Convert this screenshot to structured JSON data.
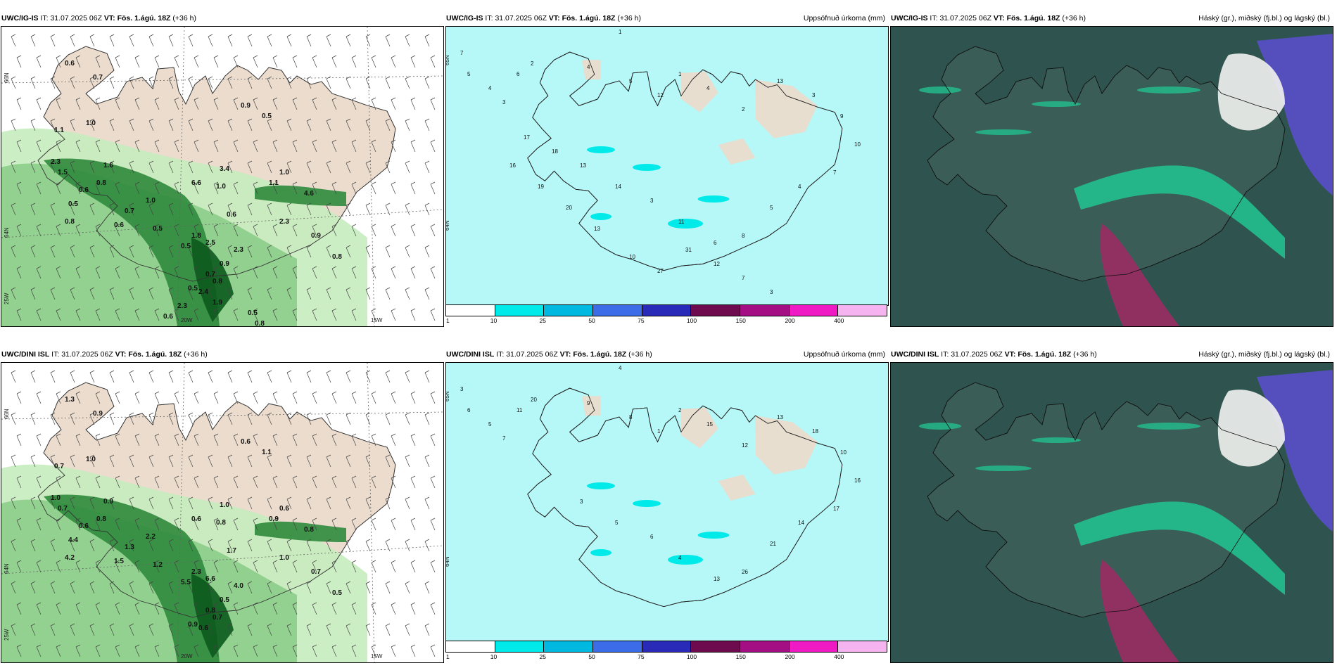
{
  "colors": {
    "land": "#ebdcce",
    "sea_white": "#ffffff",
    "precip_light_green": "#c6ecbe",
    "precip_green": "#8ccd8a",
    "precip_dark_green": "#2f8a3c",
    "precip_darkest_green": "#0c5a1e",
    "cumulative_cyan": "#b6f7f7",
    "cloud_dark": "#2f544f",
    "cloud_teal": "#21c592",
    "cloud_magenta": "#9b2c63",
    "cloud_purple": "#5b4fd0"
  },
  "panels": [
    {
      "model": "UWC/IG-IS",
      "it_label": "IT:",
      "it_value": "31.07.2025 06Z",
      "vt_label": "VT:",
      "vt_value": "Fös. 1.ágú. 18Z",
      "lead": "(+36 h)",
      "right_title": "",
      "kind": "precip_wind",
      "axis_labels": [
        "66N",
        "64N",
        "20W",
        "15W",
        "25W"
      ],
      "value_labels": [
        "0.6",
        "0.7",
        "1.0",
        "0.9",
        "0.5",
        "1.1",
        "2.3",
        "1.6",
        "0.8",
        "0.6",
        "1.5",
        "0.5",
        "1.0",
        "0.8",
        "3.4",
        "1.0",
        "1.1",
        "0.7",
        "0.6",
        "0.9",
        "0.8",
        "2.3",
        "4.6",
        "1.8",
        "0.5",
        "2.5",
        "2.3",
        "0.6",
        "1.0",
        "6.6",
        "0.5",
        "0.9",
        "0.7",
        "0.8",
        "0.5",
        "2.4",
        "1.9",
        "2.3",
        "0.5",
        "0.8",
        "0.6"
      ]
    },
    {
      "model": "UWC/IG-IS",
      "it_label": "IT:",
      "it_value": "31.07.2025 06Z",
      "vt_label": "VT:",
      "vt_value": "Fös. 1.ágú. 18Z",
      "lead": "(+36 h)",
      "right_title": "Uppsöfnuð úrkoma (mm)",
      "kind": "cumulative",
      "axis_labels": [
        "65N",
        "64N"
      ],
      "value_labels": [
        "1",
        "7",
        "5",
        "4",
        "3",
        "6",
        "2",
        "4",
        "5",
        "12",
        "1",
        "4",
        "2",
        "13",
        "3",
        "9",
        "10",
        "7",
        "4",
        "5",
        "8",
        "6",
        "11",
        "3",
        "14",
        "13",
        "18",
        "17",
        "16",
        "19",
        "20",
        "13",
        "10",
        "27",
        "31",
        "12",
        "7",
        "3"
      ],
      "colorbar": {
        "colors": [
          "#ffffff",
          "#00eaea",
          "#00b8e0",
          "#3c6ce8",
          "#2a2ab8",
          "#6e0a4e",
          "#a40f83",
          "#f01ac4",
          "#f5b4f0"
        ],
        "ticks": [
          "1",
          "10",
          "25",
          "50",
          "75",
          "100",
          "150",
          "200",
          "400"
        ]
      }
    },
    {
      "model": "UWC/IG-IS",
      "it_label": "IT:",
      "it_value": "31.07.2025 06Z",
      "vt_label": "VT:",
      "vt_value": "Fös. 1.ágú. 18Z",
      "lead": "(+36 h)",
      "right_title": "Háský (gr.), miðský (fj.bl.) og lágský (bl.)",
      "kind": "cloud",
      "axis_labels": [],
      "value_labels": []
    },
    {
      "model": "UWC/DINI ISL",
      "it_label": "IT:",
      "it_value": "31.07.2025 06Z",
      "vt_label": "VT:",
      "vt_value": "Fös. 1.ágú. 18Z",
      "lead": "(+36 h)",
      "right_title": "",
      "kind": "precip_wind",
      "axis_labels": [
        "66N",
        "64N",
        "20W",
        "15W",
        "25W"
      ],
      "value_labels": [
        "1.3",
        "0.9",
        "1.0",
        "0.6",
        "1.1",
        "0.7",
        "1.0",
        "0.9",
        "0.8",
        "0.6",
        "0.7",
        "4.4",
        "2.2",
        "4.2",
        "1.0",
        "0.6",
        "0.9",
        "1.3",
        "1.5",
        "0.7",
        "0.5",
        "1.0",
        "0.8",
        "2.3",
        "5.5",
        "6.6",
        "4.0",
        "1.7",
        "0.8",
        "0.6",
        "1.2",
        "0.5",
        "0.8",
        "0.7",
        "0.9",
        "0.6"
      ]
    },
    {
      "model": "UWC/DINI ISL",
      "it_label": "IT:",
      "it_value": "31.07.2025 06Z",
      "vt_label": "VT:",
      "vt_value": "Fös. 1.ágú. 18Z",
      "lead": "(+36 h)",
      "right_title": "Uppsöfnuð úrkoma (mm)",
      "kind": "cumulative",
      "axis_labels": [
        "65N",
        "64N"
      ],
      "value_labels": [
        "4",
        "3",
        "6",
        "5",
        "7",
        "11",
        "20",
        "9",
        "8",
        "1",
        "2",
        "15",
        "12",
        "13",
        "18",
        "10",
        "16",
        "17",
        "14",
        "21",
        "26",
        "13",
        "4",
        "6",
        "5",
        "3"
      ],
      "colorbar": {
        "colors": [
          "#ffffff",
          "#00eaea",
          "#00b8e0",
          "#3c6ce8",
          "#2a2ab8",
          "#6e0a4e",
          "#a40f83",
          "#f01ac4",
          "#f5b4f0"
        ],
        "ticks": [
          "1",
          "10",
          "25",
          "50",
          "75",
          "100",
          "150",
          "200",
          "400"
        ]
      }
    },
    {
      "model": "UWC/DINI ISL",
      "it_label": "IT:",
      "it_value": "31.07.2025 06Z",
      "vt_label": "VT:",
      "vt_value": "Fös. 1.ágú. 18Z",
      "lead": "(+36 h)",
      "right_title": "Háský (gr.), miðský (fj.bl.) og lágský (bl.)",
      "kind": "cloud",
      "axis_labels": [],
      "value_labels": []
    }
  ]
}
